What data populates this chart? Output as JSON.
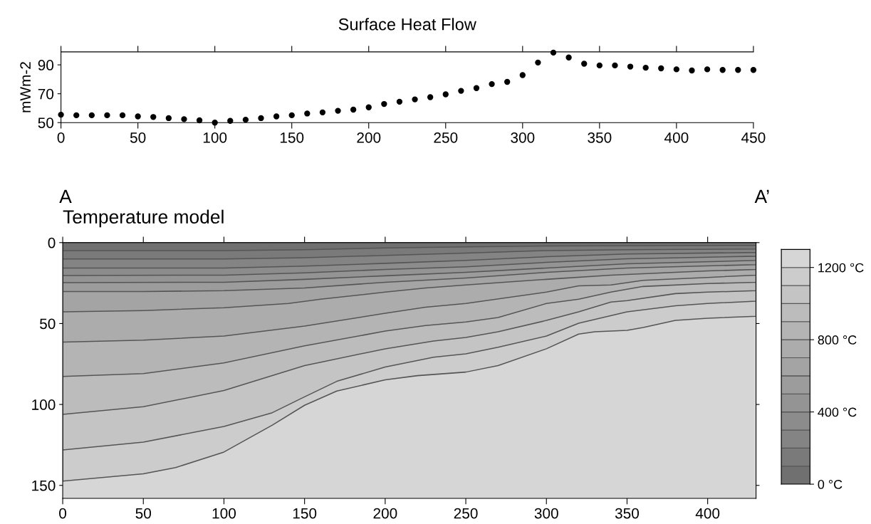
{
  "chart_data": [
    {
      "type": "scatter",
      "title": "Surface Heat Flow",
      "ylabel": "mWm-2",
      "marker": "circle",
      "legend": false,
      "grid": false,
      "x": [
        0,
        10,
        20,
        30,
        40,
        50,
        60,
        70,
        80,
        90,
        100,
        110,
        120,
        130,
        140,
        150,
        160,
        170,
        180,
        190,
        200,
        210,
        220,
        230,
        240,
        250,
        260,
        270,
        280,
        290,
        300,
        310,
        320,
        330,
        340,
        350,
        360,
        370,
        380,
        390,
        400,
        410,
        420,
        430,
        440,
        450
      ],
      "series": [
        {
          "color": "#000000",
          "values": [
            55.5,
            55.1,
            55.1,
            55.1,
            55.1,
            54.3,
            53.9,
            53.1,
            52.4,
            51.6,
            50,
            51.2,
            52,
            53.1,
            54.3,
            55.1,
            56.3,
            57.1,
            58.2,
            59,
            60.6,
            62.9,
            64.5,
            66.1,
            67.6,
            69.6,
            72,
            73.9,
            76.7,
            78.2,
            82.9,
            91.6,
            98.5,
            95.1,
            90.8,
            89.6,
            89.6,
            88.8,
            88,
            87.6,
            86.9,
            86.1,
            86.9,
            86.5,
            86.5,
            86.5
          ]
        }
      ],
      "xlim": [
        0,
        450
      ],
      "xticks": [
        0,
        50,
        100,
        150,
        200,
        250,
        300,
        350,
        400,
        450
      ],
      "ylim": [
        50,
        99
      ],
      "yticks": [
        50,
        70,
        90
      ]
    },
    {
      "type": "area",
      "title": "Temperature model",
      "annotations": [
        "A",
        "A’"
      ],
      "legend": false,
      "grid": false,
      "series": [
        {
          "color": "#707070",
          "x": [
            0,
            100,
            150,
            200,
            250,
            300,
            430
          ],
          "values": [
            4.9,
            4.9,
            4.4,
            3.3,
            2.6,
            2.1,
            1.7
          ]
        },
        {
          "color": "#7a7a7a",
          "x": [
            0,
            100,
            150,
            200,
            250,
            300,
            350,
            430
          ],
          "values": [
            10.1,
            10.1,
            9.3,
            7.9,
            6.5,
            4.9,
            4.4,
            4
          ]
        },
        {
          "color": "#848484",
          "x": [
            0,
            100,
            150,
            200,
            250,
            300,
            350,
            430
          ],
          "values": [
            15.7,
            15.7,
            14.5,
            12.8,
            11,
            8.7,
            7,
            6.1
          ]
        },
        {
          "color": "#8c8c8c",
          "x": [
            0,
            100,
            150,
            200,
            250,
            300,
            350,
            430
          ],
          "values": [
            20.3,
            20.1,
            18.7,
            16.6,
            14.9,
            12.2,
            10,
            8.4
          ]
        },
        {
          "color": "#949494",
          "x": [
            0,
            100,
            150,
            200,
            250,
            300,
            350,
            430
          ],
          "values": [
            24.7,
            24.5,
            22.7,
            20.5,
            18.4,
            15.7,
            13.1,
            11
          ]
        },
        {
          "color": "#9c9c9c",
          "x": [
            0,
            50,
            100,
            150,
            200,
            250,
            300,
            350,
            430
          ],
          "values": [
            30.2,
            30.2,
            29.7,
            28,
            24.5,
            21.9,
            18.4,
            15.7,
            13.6
          ]
        },
        {
          "color": "#a4a4a4",
          "x": [
            0,
            50,
            100,
            140,
            160,
            200,
            225,
            250,
            300,
            340,
            400,
            430
          ],
          "values": [
            42.8,
            42,
            40.2,
            37.6,
            35,
            30.6,
            28,
            26.2,
            22.7,
            20.1,
            17.5,
            16.6
          ]
        },
        {
          "color": "#acacac",
          "x": [
            0,
            50,
            100,
            150,
            200,
            225,
            250,
            300,
            320,
            340,
            360,
            400,
            430
          ],
          "values": [
            61.5,
            60.3,
            57.7,
            51.6,
            43.7,
            39.9,
            37.6,
            30.6,
            26.7,
            26.2,
            23.3,
            21.5,
            20.1
          ]
        },
        {
          "color": "#b4b4b4",
          "x": [
            0,
            50,
            100,
            150,
            200,
            225,
            250,
            270,
            300,
            320,
            340,
            360,
            400,
            430
          ],
          "values": [
            82.7,
            80.9,
            74.3,
            63.8,
            54.7,
            51.2,
            49,
            46.3,
            37.6,
            35,
            30.6,
            27.1,
            25.3,
            24.5
          ]
        },
        {
          "color": "#bcbcbc",
          "x": [
            0,
            50,
            100,
            150,
            200,
            230,
            250,
            270,
            300,
            320,
            340,
            350,
            380,
            400,
            430
          ],
          "values": [
            106.1,
            101.4,
            91.4,
            76,
            65.6,
            60.8,
            58.6,
            55.1,
            48.1,
            42.8,
            36.7,
            35.8,
            31.5,
            30.6,
            29.7
          ]
        },
        {
          "color": "#c4c4c4",
          "x": [
            0,
            50,
            100,
            130,
            150,
            170,
            200,
            230,
            250,
            270,
            300,
            320,
            350,
            380,
            400,
            430
          ],
          "values": [
            128.1,
            123.3,
            113.6,
            105.1,
            95.3,
            85.7,
            76.9,
            70.8,
            68.7,
            64.7,
            57.7,
            49.8,
            42.8,
            39,
            37.6,
            36.2
          ]
        },
        {
          "color": "#cccccc",
          "x": [
            0,
            50,
            70,
            100,
            130,
            150,
            170,
            200,
            220,
            250,
            270,
            300,
            320,
            330,
            350,
            360,
            380,
            400,
            430
          ],
          "values": [
            147.4,
            142.9,
            139,
            129.4,
            112.8,
            100.5,
            91.7,
            84.8,
            82.2,
            80,
            76,
            65.6,
            56.5,
            55.1,
            54.2,
            52.4,
            48.1,
            46.7,
            45.5
          ]
        }
      ],
      "xlim": [
        0,
        430
      ],
      "xticks": [
        0,
        50,
        100,
        150,
        200,
        250,
        300,
        350,
        400
      ],
      "ylim": [
        158,
        0
      ],
      "yticks": [
        0,
        50,
        100,
        150
      ],
      "clim": [
        0,
        1300
      ],
      "cticks": [
        {
          "value": 0,
          "label": "0 °C"
        },
        {
          "value": 400,
          "label": "400 °C"
        },
        {
          "value": 800,
          "label": "800 °C"
        },
        {
          "value": 1200,
          "label": "1200 °C"
        }
      ],
      "colors": [
        "#707070",
        "#7a7a7a",
        "#848484",
        "#8c8c8c",
        "#949494",
        "#9c9c9c",
        "#a4a4a4",
        "#acacac",
        "#b4b4b4",
        "#bcbcbc",
        "#c4c4c4",
        "#cccccc",
        "#d6d6d6"
      ]
    }
  ]
}
